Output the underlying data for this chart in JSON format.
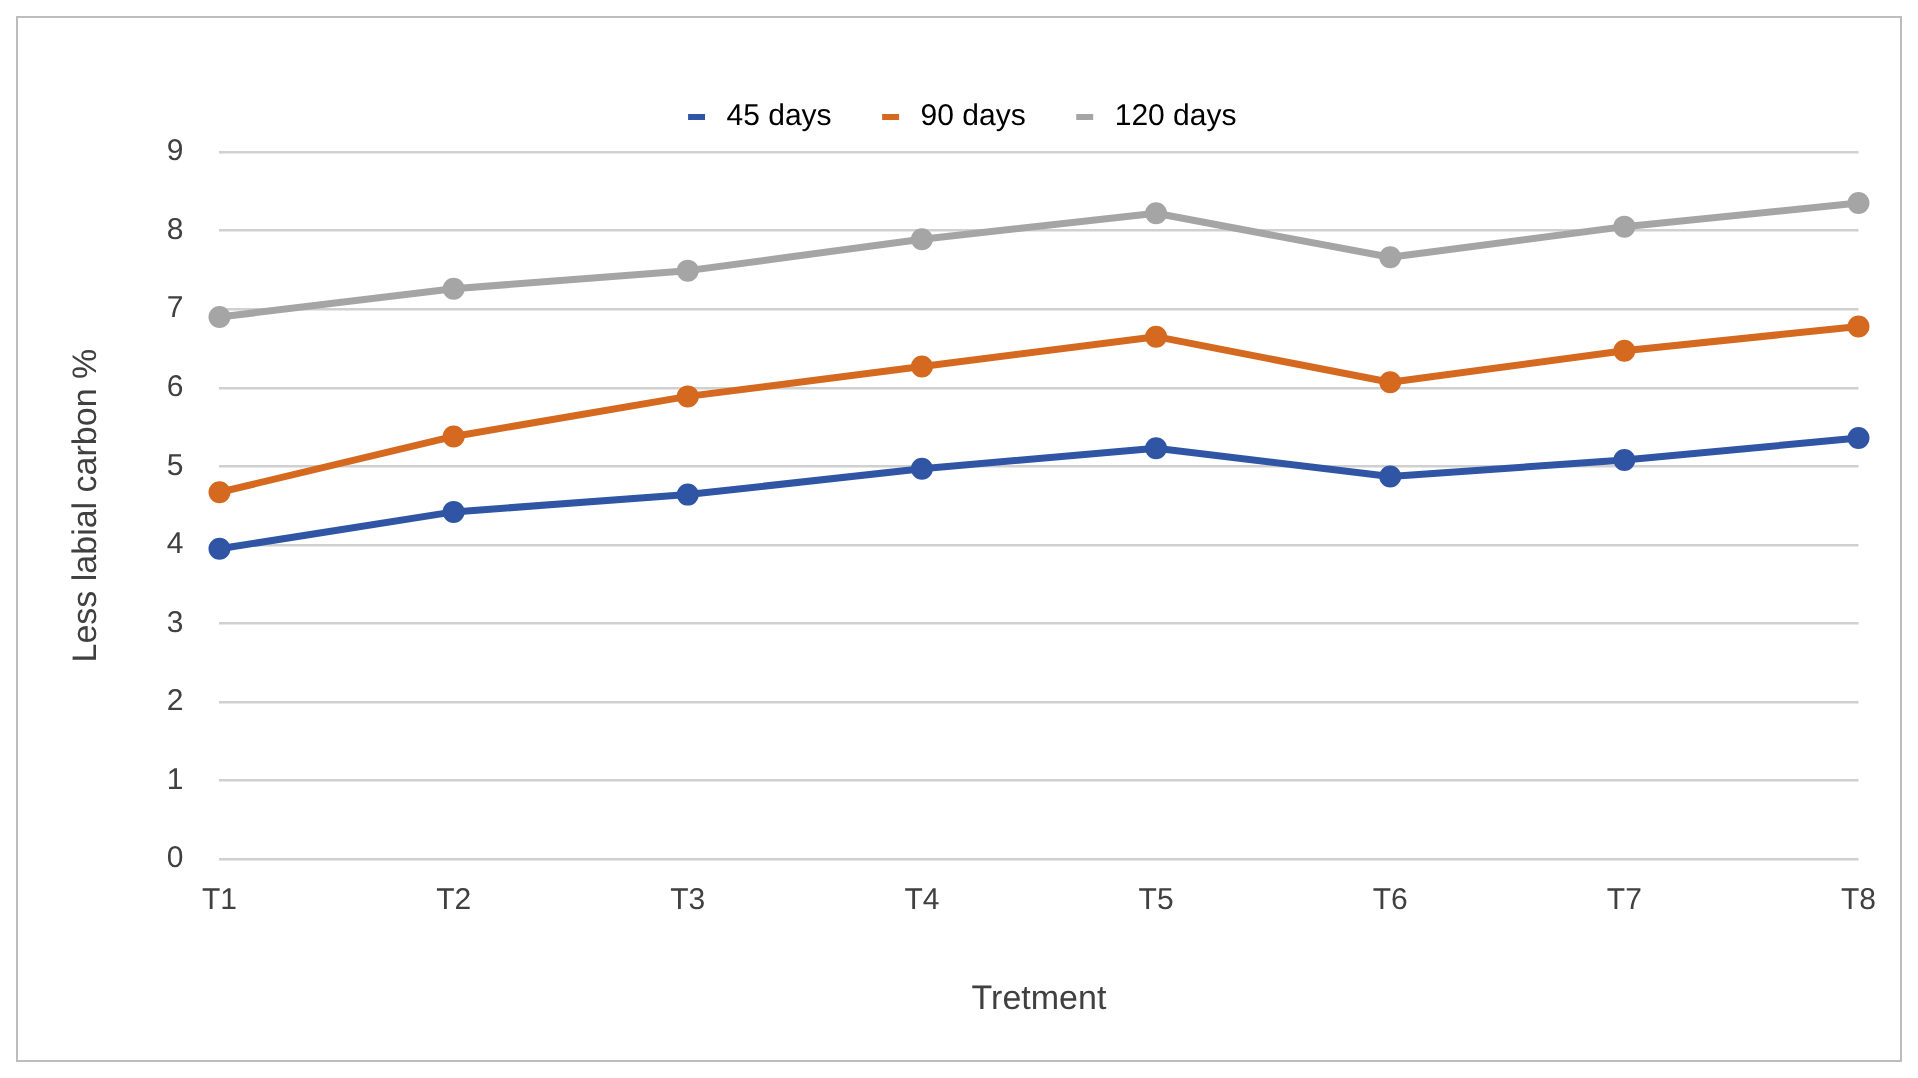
{
  "chart_data": {
    "type": "line",
    "xlabel": "Tretment",
    "ylabel": "Less labial carbon %",
    "categories": [
      "T1",
      "T2",
      "T3",
      "T4",
      "T5",
      "T6",
      "T7",
      "T8"
    ],
    "series": [
      {
        "name": "45 days",
        "color": "#2f55a4",
        "values": [
          3.95,
          4.42,
          4.64,
          4.97,
          5.23,
          4.87,
          5.08,
          5.36
        ]
      },
      {
        "name": "90 days",
        "color": "#d4691f",
        "values": [
          4.67,
          5.38,
          5.89,
          6.27,
          6.65,
          6.07,
          6.47,
          6.78
        ]
      },
      {
        "name": "120 days",
        "color": "#a5a5a5",
        "values": [
          6.9,
          7.26,
          7.49,
          7.89,
          8.22,
          7.66,
          8.05,
          8.35
        ]
      }
    ],
    "ylim": [
      0,
      9
    ],
    "yticks": [
      0,
      1,
      2,
      3,
      4,
      5,
      6,
      7,
      8,
      9
    ],
    "grid": "y",
    "legend": "top",
    "marker": "circle",
    "line_style": "solid"
  }
}
